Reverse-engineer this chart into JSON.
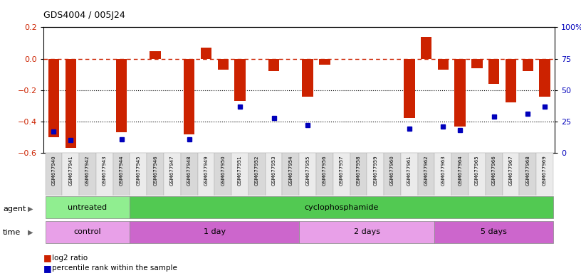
{
  "title": "GDS4004 / 005J24",
  "samples": [
    "GSM677940",
    "GSM677941",
    "GSM677942",
    "GSM677943",
    "GSM677944",
    "GSM677945",
    "GSM677946",
    "GSM677947",
    "GSM677948",
    "GSM677949",
    "GSM677950",
    "GSM677951",
    "GSM677952",
    "GSM677953",
    "GSM677954",
    "GSM677955",
    "GSM677956",
    "GSM677957",
    "GSM677958",
    "GSM677959",
    "GSM677960",
    "GSM677961",
    "GSM677962",
    "GSM677963",
    "GSM677964",
    "GSM677965",
    "GSM677966",
    "GSM677967",
    "GSM677968",
    "GSM677969"
  ],
  "log2_ratio": [
    -0.5,
    -0.57,
    0.0,
    0.0,
    -0.47,
    0.0,
    0.05,
    0.0,
    -0.48,
    0.07,
    -0.07,
    -0.27,
    0.0,
    -0.08,
    0.0,
    -0.24,
    -0.04,
    0.0,
    0.0,
    0.0,
    0.0,
    -0.38,
    0.14,
    -0.07,
    -0.43,
    -0.06,
    -0.16,
    -0.28,
    -0.08,
    -0.24
  ],
  "percentile": [
    17,
    10,
    0,
    0,
    11,
    0,
    0,
    0,
    11,
    0,
    0,
    37,
    0,
    28,
    0,
    22,
    0,
    0,
    0,
    0,
    0,
    19,
    0,
    21,
    18,
    0,
    29,
    0,
    31,
    37
  ],
  "agent_groups": [
    {
      "label": "untreated",
      "start": 0,
      "end": 4,
      "color": "#90EE90"
    },
    {
      "label": "cyclophosphamide",
      "start": 5,
      "end": 29,
      "color": "#52C952"
    }
  ],
  "time_groups": [
    {
      "label": "control",
      "start": 0,
      "end": 4,
      "color": "#E8A0E8"
    },
    {
      "label": "1 day",
      "start": 5,
      "end": 14,
      "color": "#CC66CC"
    },
    {
      "label": "2 days",
      "start": 15,
      "end": 22,
      "color": "#E8A0E8"
    },
    {
      "label": "5 days",
      "start": 23,
      "end": 29,
      "color": "#CC66CC"
    }
  ],
  "ylim": [
    -0.6,
    0.2
  ],
  "yticks": [
    -0.6,
    -0.4,
    -0.2,
    0.0,
    0.2
  ],
  "bar_color": "#CC2200",
  "dot_color": "#0000BB",
  "zero_line_color": "#CC2200",
  "right_axis_ticks": [
    0,
    25,
    50,
    75,
    100
  ],
  "right_axis_labels": [
    "0",
    "25",
    "50",
    "75",
    "100%"
  ]
}
